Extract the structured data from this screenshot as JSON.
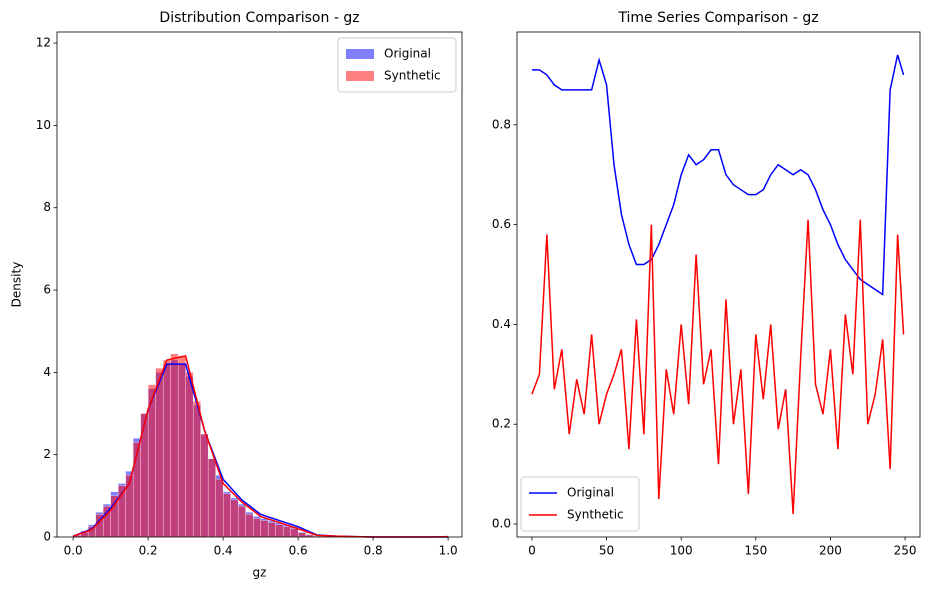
{
  "chart_data": [
    {
      "type": "histogram",
      "title": "Distribution Comparison - gz",
      "xlabel": "gz",
      "ylabel": "Density",
      "xlim": [
        -0.043,
        1.037
      ],
      "ylim": [
        0,
        12.27
      ],
      "xticks": [
        {
          "value": 0,
          "label": "0.0"
        },
        0.2,
        0.4,
        0.6,
        0.8,
        {
          "value": 1,
          "label": "1.0"
        }
      ],
      "yticks": [
        0,
        2,
        4,
        6,
        8,
        10,
        12
      ],
      "legend": "upper right",
      "opacity": 0.5,
      "bins": [
        0,
        0.02,
        0.04,
        0.06,
        0.08,
        0.1,
        0.12,
        0.14,
        0.16,
        0.18,
        0.2,
        0.22,
        0.24,
        0.26,
        0.28,
        0.3,
        0.32,
        0.34,
        0.36,
        0.38,
        0.4,
        0.42,
        0.44,
        0.46,
        0.48,
        0.5,
        0.52,
        0.54,
        0.56,
        0.58,
        0.6,
        0.62,
        0.64,
        0.66,
        0.68,
        0.7,
        0.72,
        0.74,
        0.76,
        0.78,
        0.8,
        0.82,
        0.84,
        0.86,
        0.88,
        0.9,
        0.92,
        0.94,
        0.96,
        0.98,
        1
      ],
      "series": [
        {
          "name": "Original",
          "color": "#0000ff",
          "values": [
            0.05,
            0.15,
            0.3,
            0.6,
            0.8,
            1.1,
            1.3,
            1.6,
            2.4,
            3.0,
            3.6,
            4.0,
            4.2,
            4.3,
            4.2,
            3.9,
            3.2,
            2.5,
            1.9,
            1.5,
            1.1,
            0.95,
            0.8,
            0.6,
            0.5,
            0.45,
            0.4,
            0.35,
            0.3,
            0.25,
            0.12,
            0.06,
            0.03,
            0.02,
            0.01,
            0.01,
            0.01,
            0,
            0,
            0,
            0,
            0,
            0,
            0,
            0,
            0,
            0,
            0,
            0,
            0
          ]
        },
        {
          "name": "Synthetic",
          "color": "#ff0000",
          "values": [
            0.04,
            0.12,
            0.25,
            0.55,
            0.75,
            1.0,
            1.25,
            1.5,
            2.3,
            3.0,
            3.7,
            4.1,
            4.3,
            4.45,
            4.4,
            4.0,
            3.3,
            2.5,
            1.9,
            1.4,
            1.05,
            0.9,
            0.75,
            0.55,
            0.45,
            0.4,
            0.35,
            0.3,
            0.25,
            0.2,
            0.1,
            0.05,
            0.02,
            0.01,
            0.01,
            0.01,
            0,
            0,
            0,
            0,
            0,
            0,
            0,
            0,
            0,
            0,
            0,
            0,
            0,
            0.01
          ]
        }
      ],
      "kde": {
        "x": [
          0,
          0.05,
          0.1,
          0.15,
          0.2,
          0.25,
          0.3,
          0.35,
          0.4,
          0.45,
          0.5,
          0.55,
          0.6,
          0.65,
          0.7,
          0.75,
          0.8,
          0.85,
          0.9,
          0.95,
          1
        ],
        "series": [
          {
            "color": "#0000ff",
            "values": [
              0.02,
              0.2,
              0.7,
              1.3,
              3.1,
              4.2,
              4.2,
              2.6,
              1.4,
              0.9,
              0.55,
              0.4,
              0.25,
              0.05,
              0.02,
              0.01,
              0,
              0,
              0,
              0,
              0
            ]
          },
          {
            "color": "#ff0000",
            "values": [
              0.02,
              0.18,
              0.65,
              1.3,
              3.1,
              4.3,
              4.4,
              2.6,
              1.3,
              0.85,
              0.5,
              0.35,
              0.2,
              0.04,
              0.02,
              0.01,
              0,
              0,
              0,
              0,
              0.01
            ]
          }
        ]
      }
    },
    {
      "type": "line",
      "title": "Time Series Comparison - gz",
      "xlim": [
        -10,
        260
      ],
      "ylim": [
        -0.026,
        0.986
      ],
      "xticks": [
        0,
        50,
        100,
        150,
        200,
        250
      ],
      "yticks": [
        {
          "value": 0,
          "label": "0.0"
        },
        0.2,
        0.4,
        0.6,
        0.8
      ],
      "legend": "lower left",
      "x": [
        0,
        5,
        10,
        15,
        20,
        25,
        30,
        35,
        40,
        45,
        50,
        55,
        60,
        65,
        70,
        75,
        80,
        85,
        90,
        95,
        100,
        105,
        110,
        115,
        120,
        125,
        130,
        135,
        140,
        145,
        150,
        155,
        160,
        165,
        170,
        175,
        180,
        185,
        190,
        195,
        200,
        205,
        210,
        215,
        220,
        225,
        230,
        235,
        240,
        245,
        249
      ],
      "series": [
        {
          "name": "Original",
          "color": "#0000ff",
          "values": [
            0.91,
            0.91,
            0.9,
            0.88,
            0.87,
            0.87,
            0.87,
            0.87,
            0.87,
            0.93,
            0.88,
            0.72,
            0.62,
            0.56,
            0.52,
            0.52,
            0.53,
            0.56,
            0.6,
            0.64,
            0.7,
            0.74,
            0.72,
            0.73,
            0.75,
            0.75,
            0.7,
            0.68,
            0.67,
            0.66,
            0.66,
            0.67,
            0.7,
            0.72,
            0.71,
            0.7,
            0.71,
            0.7,
            0.67,
            0.63,
            0.6,
            0.56,
            0.53,
            0.51,
            0.49,
            0.48,
            0.47,
            0.46,
            0.87,
            0.94,
            0.9
          ]
        },
        {
          "name": "Synthetic",
          "color": "#ff0000",
          "values": [
            0.26,
            0.3,
            0.58,
            0.27,
            0.35,
            0.18,
            0.29,
            0.22,
            0.38,
            0.2,
            0.26,
            0.3,
            0.35,
            0.15,
            0.41,
            0.18,
            0.6,
            0.05,
            0.31,
            0.22,
            0.4,
            0.24,
            0.54,
            0.28,
            0.35,
            0.12,
            0.45,
            0.2,
            0.31,
            0.06,
            0.38,
            0.25,
            0.4,
            0.19,
            0.27,
            0.02,
            0.33,
            0.61,
            0.28,
            0.22,
            0.35,
            0.15,
            0.42,
            0.3,
            0.61,
            0.2,
            0.26,
            0.37,
            0.11,
            0.58,
            0.38
          ]
        }
      ]
    }
  ]
}
